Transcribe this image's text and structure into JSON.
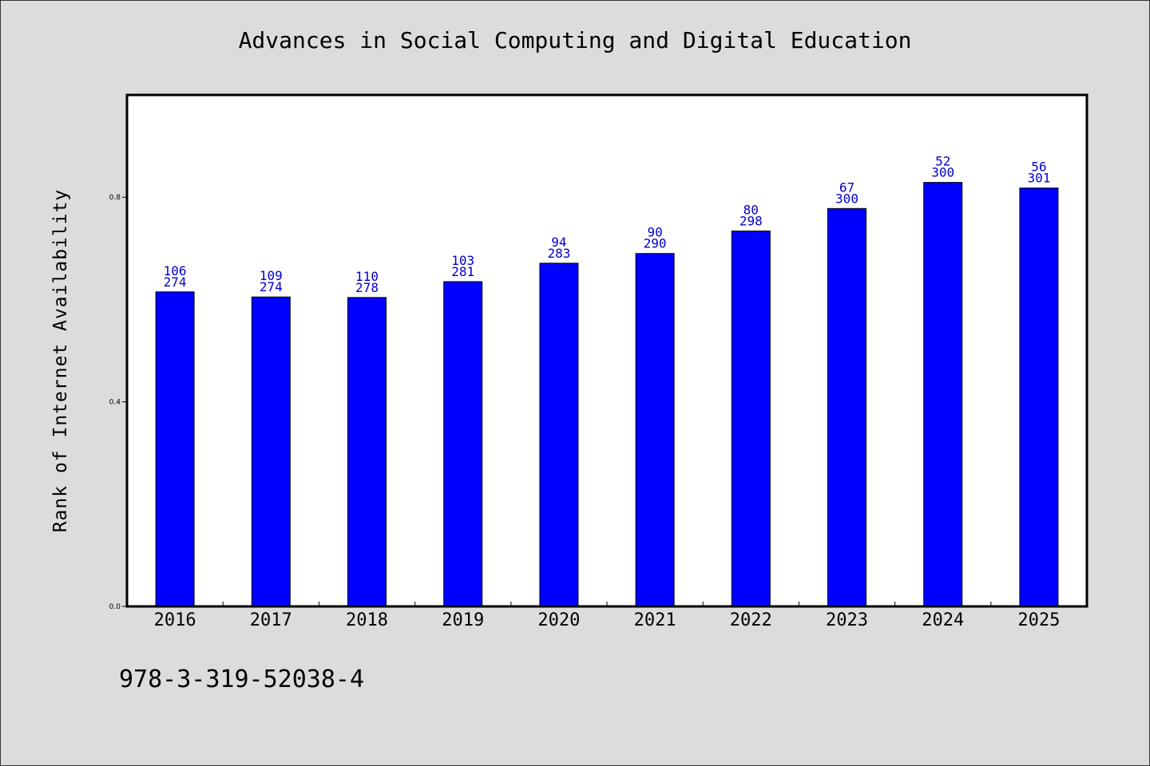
{
  "chart_data": {
    "type": "bar",
    "title": "Advances in Social Computing and Digital Education",
    "xlabel": "",
    "ylabel": "Rank of Internet Availability",
    "categories": [
      "2016",
      "2017",
      "2018",
      "2019",
      "2020",
      "2021",
      "2022",
      "2023",
      "2024",
      "2025"
    ],
    "values": [
      0.615,
      0.605,
      0.604,
      0.635,
      0.671,
      0.69,
      0.734,
      0.778,
      0.829,
      0.818
    ],
    "label_top": [
      "106",
      "109",
      "110",
      "103",
      "94",
      "90",
      "80",
      "67",
      "52",
      "56"
    ],
    "label_bottom": [
      "274",
      "274",
      "278",
      "281",
      "283",
      "290",
      "298",
      "300",
      "300",
      "301"
    ],
    "ylim": [
      0,
      1.0
    ],
    "yticks": [
      "0.0",
      "0.4",
      "0.8"
    ],
    "grid": false,
    "bar_color": "#0000ff",
    "label_color": "#0000cc"
  },
  "footer": {
    "isbn": "978-3-319-52038-4"
  }
}
